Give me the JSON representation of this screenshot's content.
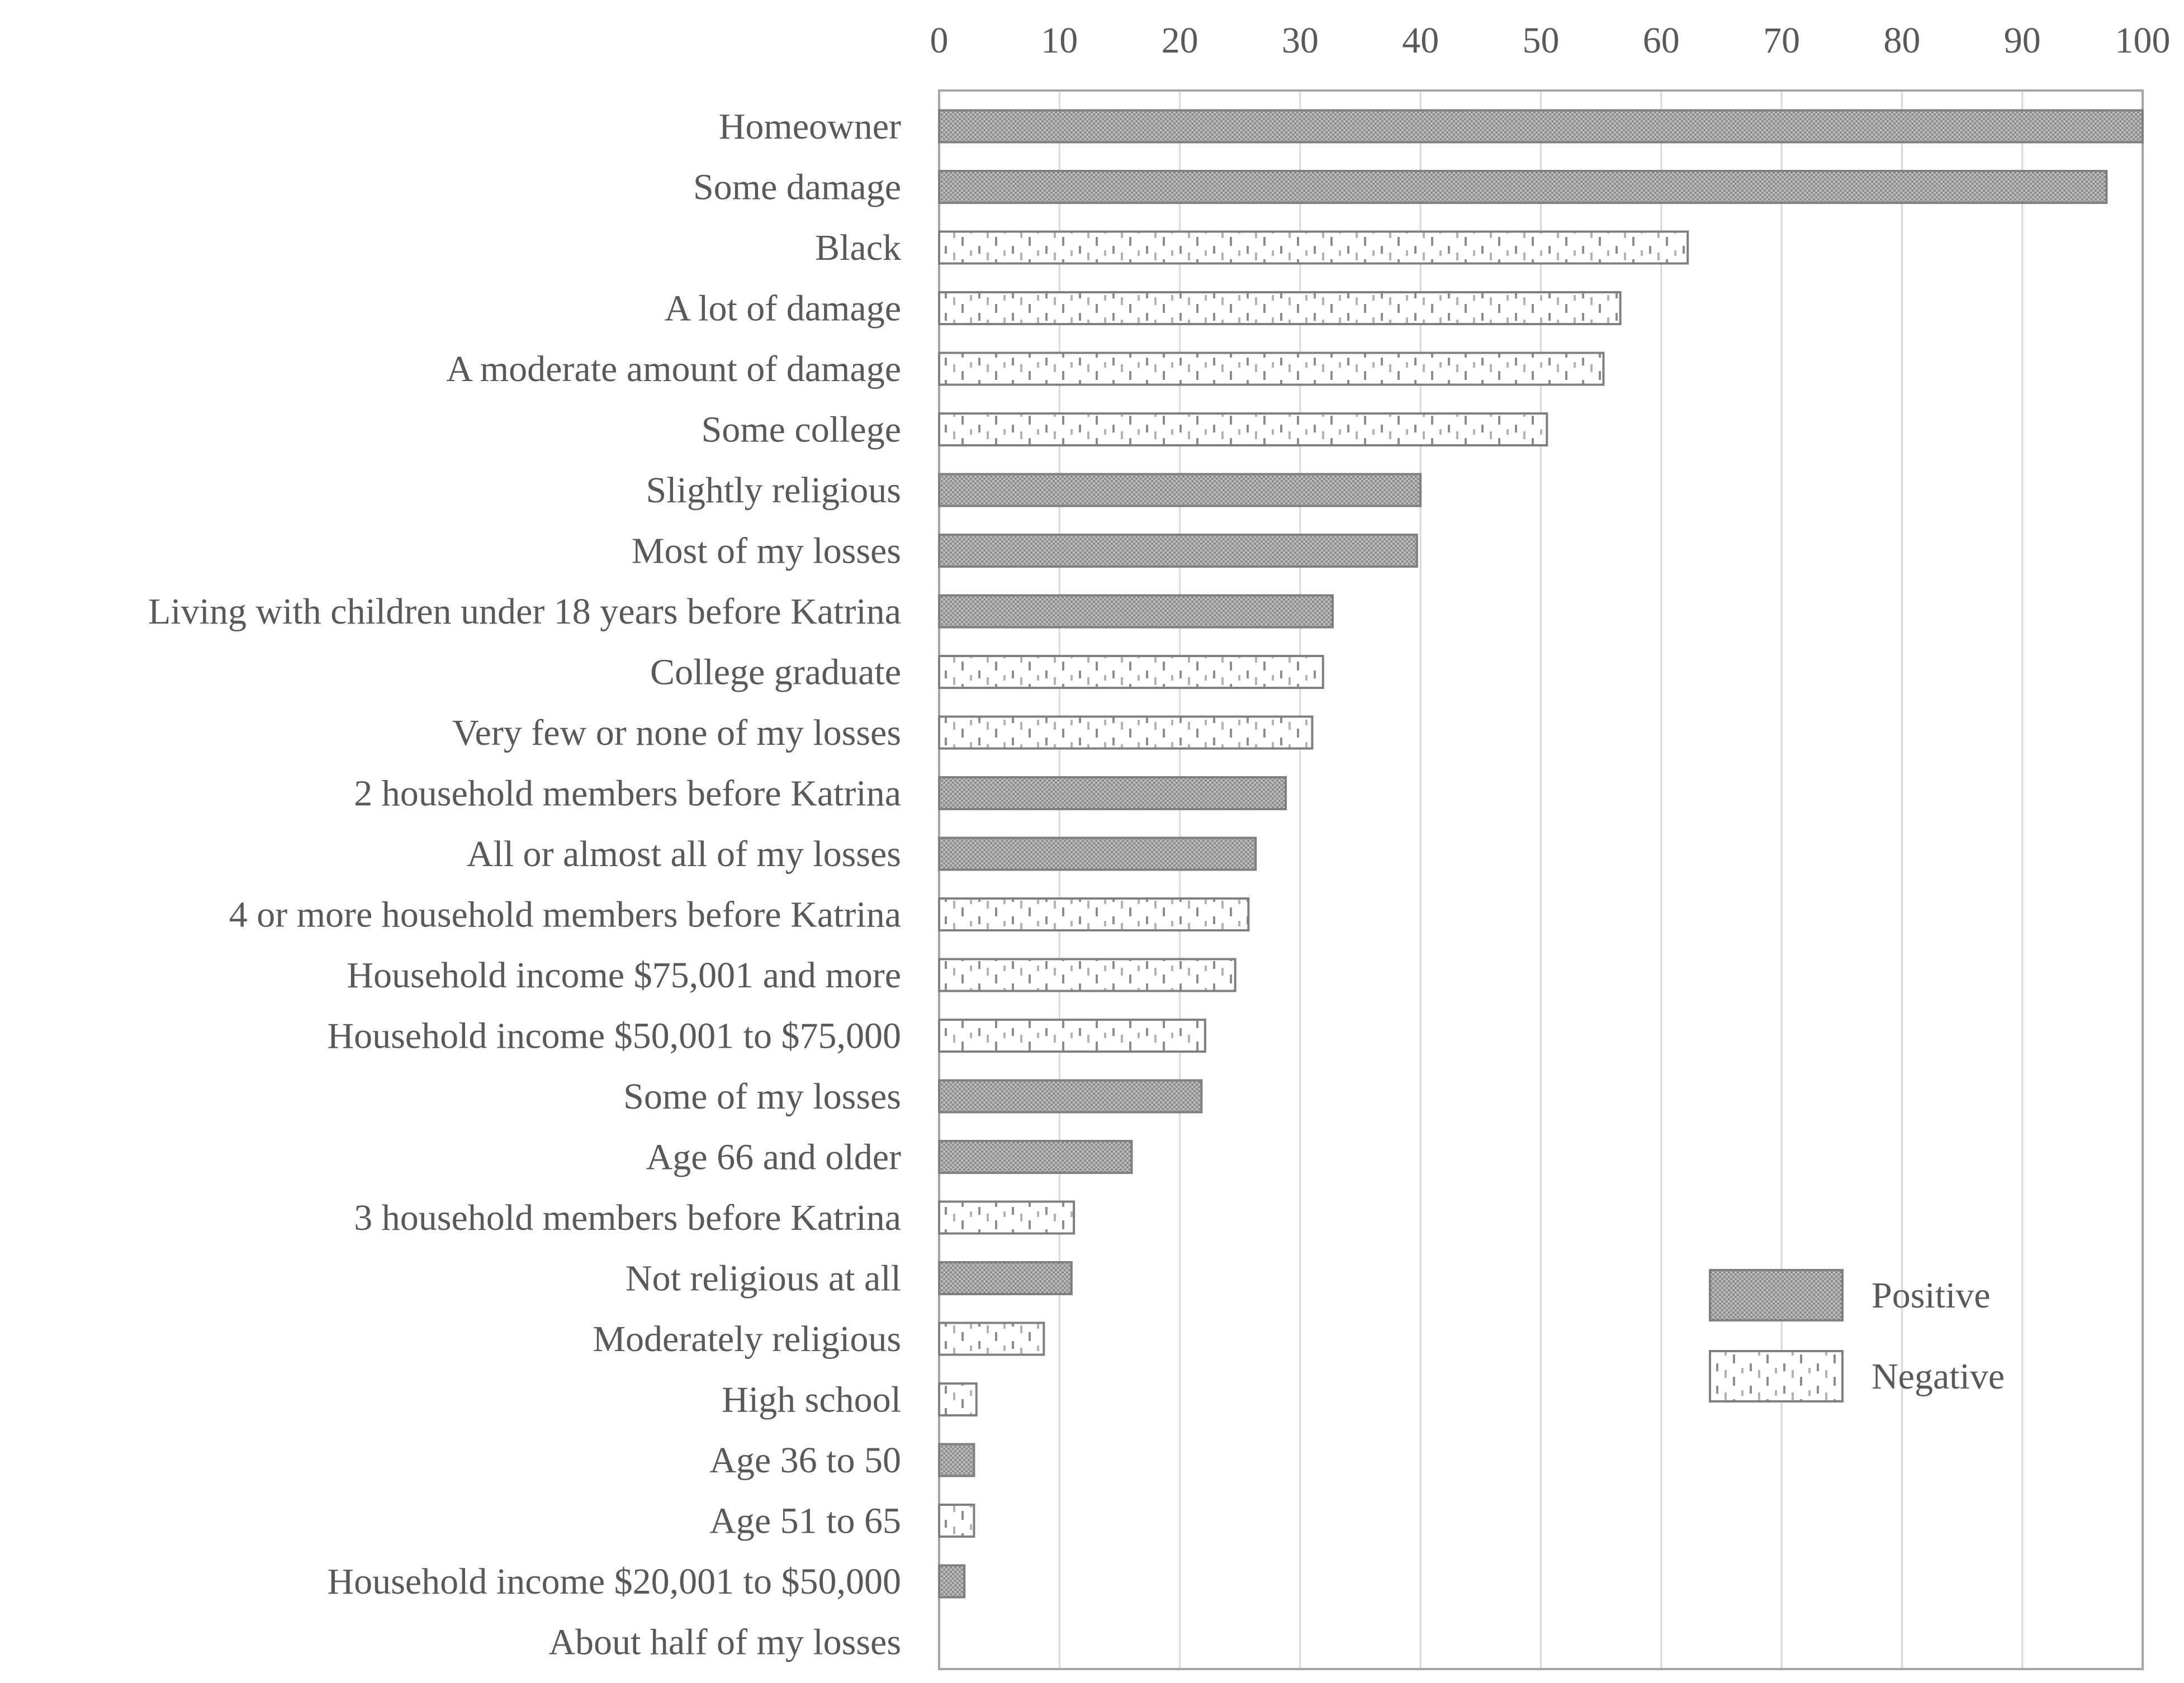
{
  "chart_data": {
    "type": "bar",
    "orientation": "horizontal",
    "title": "",
    "xlabel": "",
    "ylabel": "",
    "xlim": [
      0,
      100
    ],
    "x_ticks": [
      0,
      10,
      20,
      30,
      40,
      50,
      60,
      70,
      80,
      90,
      100
    ],
    "x_axis_position": "top",
    "grid": true,
    "legend_position": "bottom-right",
    "legend": [
      {
        "key": "positive",
        "label": "Positive"
      },
      {
        "key": "negative",
        "label": "Negative"
      }
    ],
    "colors": {
      "bar_stroke": "#7f7f7f",
      "positive_fill": "#a6a6a6",
      "negative_fill": "#ffffff",
      "negative_mark": "#8c8c8c",
      "grid": "#d9d9d9",
      "text": "#595959",
      "axis": "#a6a6a6"
    },
    "categories": [
      "Homeowner",
      "Some damage",
      "Black",
      "A lot of damage",
      "A moderate amount of damage",
      "Some college",
      "Slightly religious",
      "Most of my losses",
      "Living with children under 18 years before Katrina",
      "College graduate",
      "Very few or none of my losses",
      "2 household members before Katrina",
      "All or almost all of my losses",
      "4 or more household members before Katrina",
      "Household income $75,001 and more",
      "Household income $50,001 to $75,000",
      "Some of my losses",
      "Age 66 and older",
      "3 household members before Katrina",
      "Not religious at all",
      "Moderately religious",
      "High school",
      "Age 36 to 50",
      "Age 51 to 65",
      "Household income $20,001 to $50,000",
      "About half of my losses"
    ],
    "values": [
      100,
      97,
      62.2,
      56.6,
      55.2,
      50.5,
      40,
      39.7,
      32.7,
      31.9,
      31,
      28.8,
      26.3,
      25.7,
      24.6,
      22.1,
      21.8,
      16,
      11.2,
      11,
      8.7,
      3.1,
      2.9,
      2.9,
      2.1,
      0
    ],
    "signs": [
      "positive",
      "positive",
      "negative",
      "negative",
      "negative",
      "negative",
      "positive",
      "positive",
      "positive",
      "negative",
      "negative",
      "positive",
      "positive",
      "negative",
      "negative",
      "negative",
      "positive",
      "positive",
      "negative",
      "positive",
      "negative",
      "negative",
      "positive",
      "negative",
      "positive",
      "positive"
    ]
  }
}
